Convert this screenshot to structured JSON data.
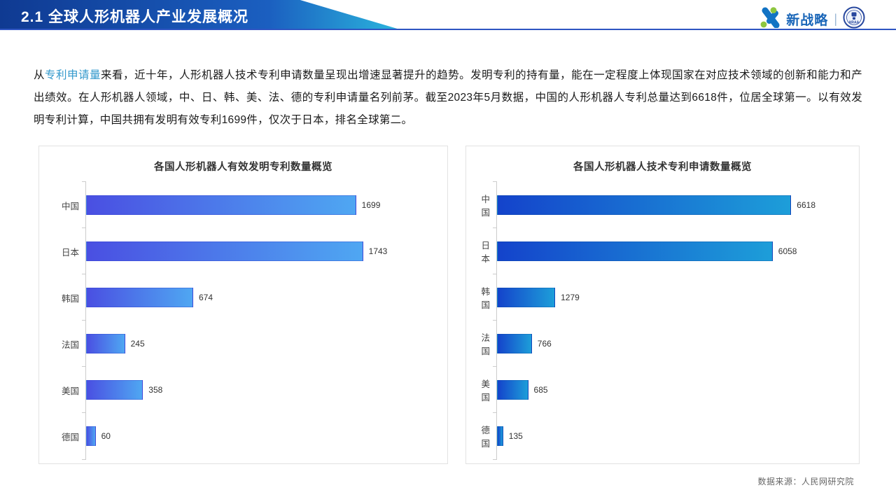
{
  "header": {
    "title": "2.1 全球人形机器人产业发展概况",
    "brand": "新战略",
    "badge": "HRAA"
  },
  "intro": {
    "prefix": "从",
    "highlight": "专利申请量",
    "rest": "来看，近十年，人形机器人技术专利申请数量呈现出增速显著提升的趋势。发明专利的持有量，能在一定程度上体现国家在对应技术领域的创新和能力和产出绩效。在人形机器人领域，中、日、韩、美、法、德的专利申请量名列前茅。截至2023年5月数据，中国的人形机器人专利总量达到6618件，位居全球第一。以有效发明专利计算，中国共拥有发明有效专利1699件，仅次于日本，排名全球第二。"
  },
  "chart_data": [
    {
      "type": "bar",
      "orientation": "horizontal",
      "title": "各国人形机器人有效发明专利数量概览",
      "categories": [
        "中国",
        "日本",
        "韩国",
        "法国",
        "美国",
        "德国"
      ],
      "values": [
        1699,
        1743,
        674,
        245,
        358,
        60
      ],
      "axis_max": 2000,
      "value_labels": true,
      "grid": false,
      "bar_gradient": [
        "#4a4fe2",
        "#4fa7f2"
      ],
      "bar_border": "rgba(45,60,200,0.35)"
    },
    {
      "type": "bar",
      "orientation": "horizontal",
      "title": "各国人形机器人技术专利申请数量概览",
      "categories": [
        "中国",
        "日本",
        "韩国",
        "法国",
        "美国",
        "德国"
      ],
      "values": [
        6618,
        6058,
        1279,
        766,
        685,
        135
      ],
      "axis_max": 7000,
      "value_labels": true,
      "grid": false,
      "bar_gradient": [
        "#1443cb",
        "#1d9ed9"
      ],
      "bar_border": "rgba(10,70,150,0.30)"
    }
  ],
  "footer": {
    "source": "数据来源：人民网研究院"
  },
  "colors": {
    "banner_gradient": [
      "#0f3a92",
      "#1b5fc0",
      "#2ab2dc"
    ],
    "header_underline": "#2e55c2",
    "intro_highlight": "#3399cc",
    "brand_blue": "#1a66b8",
    "brand_green": "#8ec63f"
  }
}
